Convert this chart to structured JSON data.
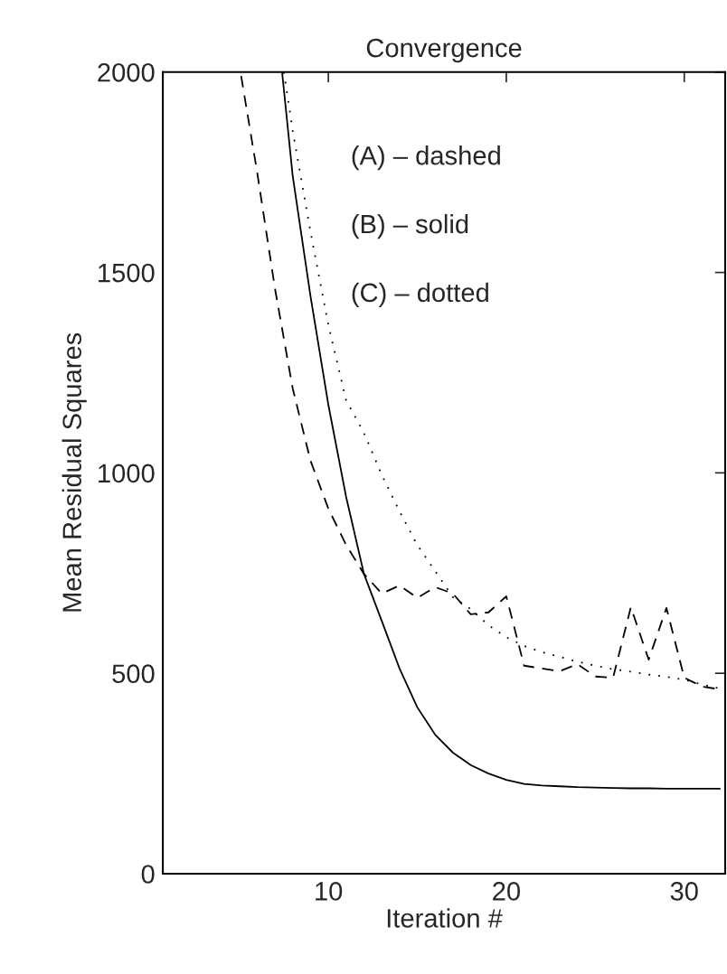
{
  "chart_data": {
    "type": "line",
    "title": "Convergence",
    "xlabel": "Iteration #",
    "ylabel": "Mean Residual Squares",
    "xlim": [
      0.7,
      32.3
    ],
    "xticks": [
      10,
      20,
      30
    ],
    "ylim": [
      0,
      2000
    ],
    "yticks": [
      0,
      500,
      1000,
      1500,
      2000
    ],
    "grid": false,
    "marker": "none",
    "annotations": [
      "(A) – dashed",
      "(B) – solid",
      "(C) – dotted"
    ],
    "series": [
      {
        "color": "#000000",
        "line_style": "dashed",
        "x": [
          5.1,
          6,
          7,
          8,
          9,
          10,
          11,
          12,
          13,
          14,
          15,
          16,
          17,
          18,
          19,
          20,
          21,
          22,
          23,
          24,
          25,
          26,
          27,
          28,
          29,
          30,
          31,
          32
        ],
        "values": [
          1990,
          1750,
          1460,
          1210,
          1030,
          911,
          820,
          748,
          699,
          719,
          688,
          715,
          699,
          647,
          652,
          692,
          519,
          512,
          505,
          523,
          492,
          489,
          665,
          534,
          663,
          489,
          467,
          460
        ]
      },
      {
        "color": "#000000",
        "line_style": "solid",
        "x": [
          7.4,
          8,
          9,
          10,
          11,
          12,
          13,
          14,
          15,
          16,
          17,
          18,
          19,
          20,
          21,
          22,
          23,
          24,
          25,
          26,
          27,
          28,
          29,
          30,
          31,
          32
        ],
        "values": [
          2000,
          1740,
          1440,
          1170,
          940,
          748,
          631,
          512,
          415,
          347,
          302,
          271,
          250,
          234,
          224,
          220,
          218,
          216,
          215,
          214,
          213,
          213,
          212,
          212,
          212,
          212
        ]
      },
      {
        "color": "#000000",
        "line_style": "dotted",
        "x": [
          7.5,
          8,
          9,
          10,
          11,
          12,
          13,
          14,
          15,
          16,
          17,
          18,
          19,
          20,
          21,
          22,
          23,
          24,
          25,
          26,
          27,
          28,
          29,
          30,
          31,
          32
        ],
        "values": [
          2000,
          1853,
          1601,
          1369,
          1181,
          1100,
          995,
          904,
          820,
          755,
          690,
          660,
          620,
          590,
          568,
          553,
          541,
          529,
          519,
          510,
          504,
          497,
          491,
          484,
          472,
          462
        ]
      }
    ]
  }
}
